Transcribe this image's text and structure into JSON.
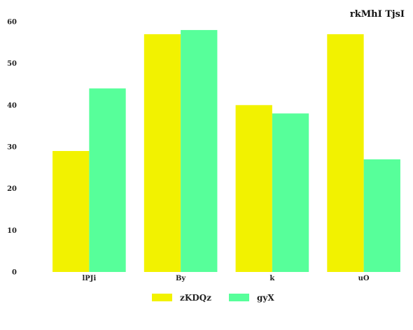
{
  "chart_data": {
    "type": "bar",
    "title": "rkMhI TjsI",
    "categories": [
      "lPJi",
      "By",
      "k",
      "uO"
    ],
    "series": [
      {
        "name": "zKDQz",
        "values": [
          29,
          57,
          40,
          57
        ],
        "color": "#f2f200"
      },
      {
        "name": "gyX",
        "values": [
          44,
          58,
          38,
          27
        ],
        "color": "#57ff9a"
      }
    ],
    "ylim": [
      0,
      60
    ],
    "yticks": [
      0,
      10,
      20,
      30,
      40,
      50,
      60
    ],
    "grid": false,
    "legend_position": "bottom"
  }
}
